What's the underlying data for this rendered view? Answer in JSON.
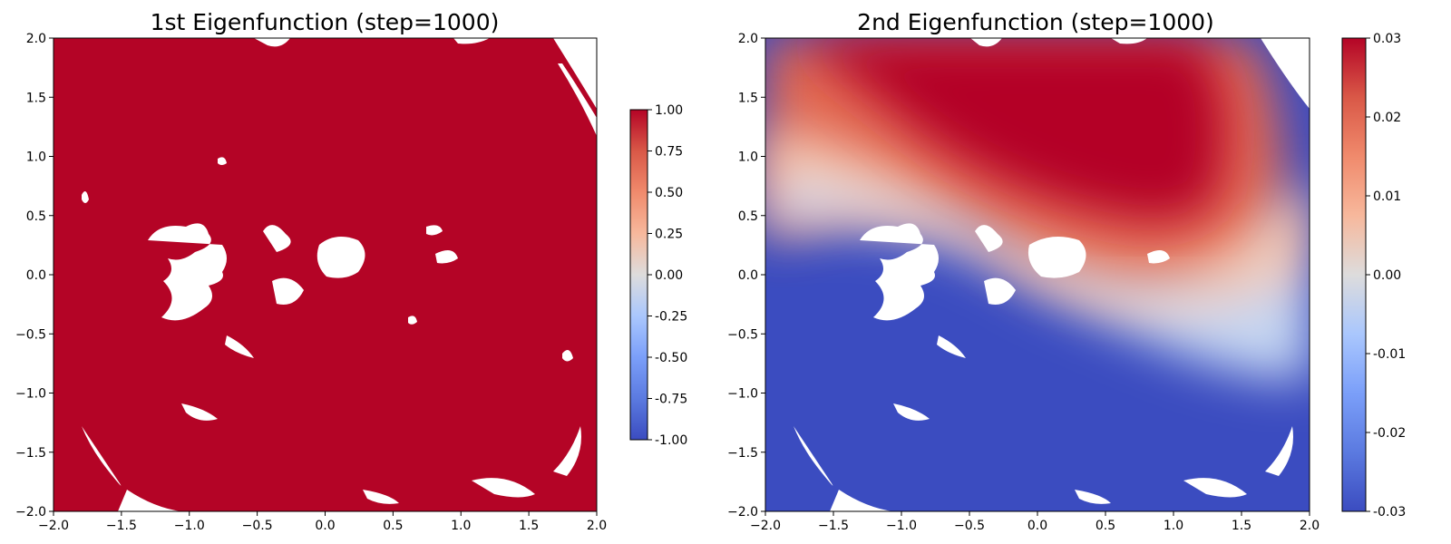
{
  "chart_data": [
    {
      "type": "scatter",
      "title": "1st Eigenfunction (step=1000)",
      "xlabel": "",
      "ylabel": "",
      "xlim": [
        -2.0,
        2.0
      ],
      "ylim": [
        -2.0,
        2.0
      ],
      "x_ticks": [
        "−2.0",
        "−1.5",
        "−1.0",
        "−0.5",
        "0.0",
        "0.5",
        "1.0",
        "1.5",
        "2.0"
      ],
      "y_ticks": [
        "−2.0",
        "−1.5",
        "−1.0",
        "−0.5",
        "0.0",
        "0.5",
        "1.0",
        "1.5",
        "2.0"
      ],
      "colormap": "coolwarm",
      "colorbar": {
        "range": [
          -1.0,
          1.0
        ],
        "ticks": [
          "1.00",
          "0.75",
          "0.50",
          "0.25",
          "0.00",
          "-0.25",
          "-0.50",
          "-0.75",
          "-1.00"
        ]
      },
      "dominant_value": 1.0,
      "dominant_color": "#b40426",
      "description_values": "Nearly constant eigenfunction at the colorbar maximum across the sampled domain"
    },
    {
      "type": "scatter",
      "title": "2nd Eigenfunction (step=1000)",
      "xlabel": "",
      "ylabel": "",
      "xlim": [
        -2.0,
        2.0
      ],
      "ylim": [
        -2.0,
        2.0
      ],
      "x_ticks": [
        "−2.0",
        "−1.5",
        "−1.0",
        "−0.5",
        "0.0",
        "0.5",
        "1.0",
        "1.5",
        "2.0"
      ],
      "y_ticks": [
        "−2.0",
        "−1.5",
        "−1.0",
        "−0.5",
        "0.0",
        "0.5",
        "1.0",
        "1.5",
        "2.0"
      ],
      "colormap": "coolwarm",
      "colorbar": {
        "range": [
          -0.03,
          0.03
        ],
        "ticks": [
          "0.03",
          "0.02",
          "0.01",
          "0.00",
          "-0.01",
          "-0.02",
          "-0.03"
        ]
      },
      "high_color": "#b40426",
      "low_color": "#3b4cc0"
    }
  ]
}
